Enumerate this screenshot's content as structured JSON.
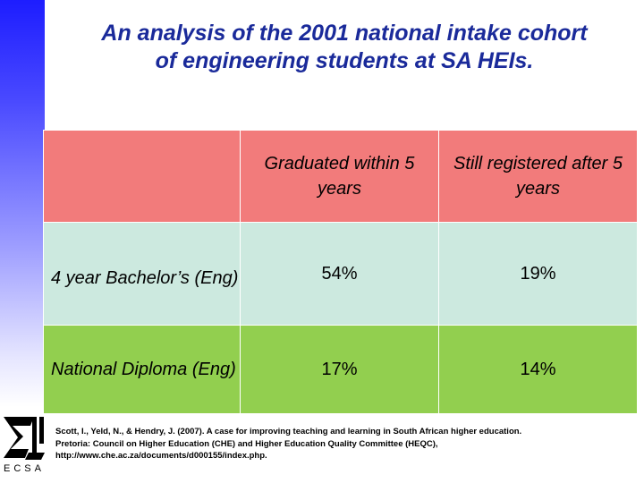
{
  "slide": {
    "title_line1": "An analysis of the 2001 national intake cohort",
    "title_line2": "of engineering students at SA HEIs."
  },
  "table": {
    "columns": [
      "",
      "Graduated within 5 years",
      "Still registered after 5 years"
    ],
    "rows": [
      {
        "label": "4 year Bachelor’s (Eng)",
        "graduated": "54%",
        "still_registered": "19%"
      },
      {
        "label": "National Diploma (Eng)",
        "graduated": "17%",
        "still_registered": "14%"
      }
    ]
  },
  "citation": {
    "line1": "Scott, I., Yeld, N., & Hendry, J. (2007). A case for improving teaching and learning in South African higher education.",
    "line2": "Pretoria: Council on Higher Education (CHE) and Higher Education Quality Committee (HEQC),",
    "line3": "http://www.che.ac.za/documents/d000155/index.php."
  },
  "logo": {
    "icon": "ecsa-logo-icon",
    "text": "ECSA"
  },
  "colors": {
    "title": "#1a2a9a",
    "header_row": "#f27b7b",
    "row1": "#cce9df",
    "row2": "#92cf4f",
    "side_bar": "#1d1dff"
  }
}
